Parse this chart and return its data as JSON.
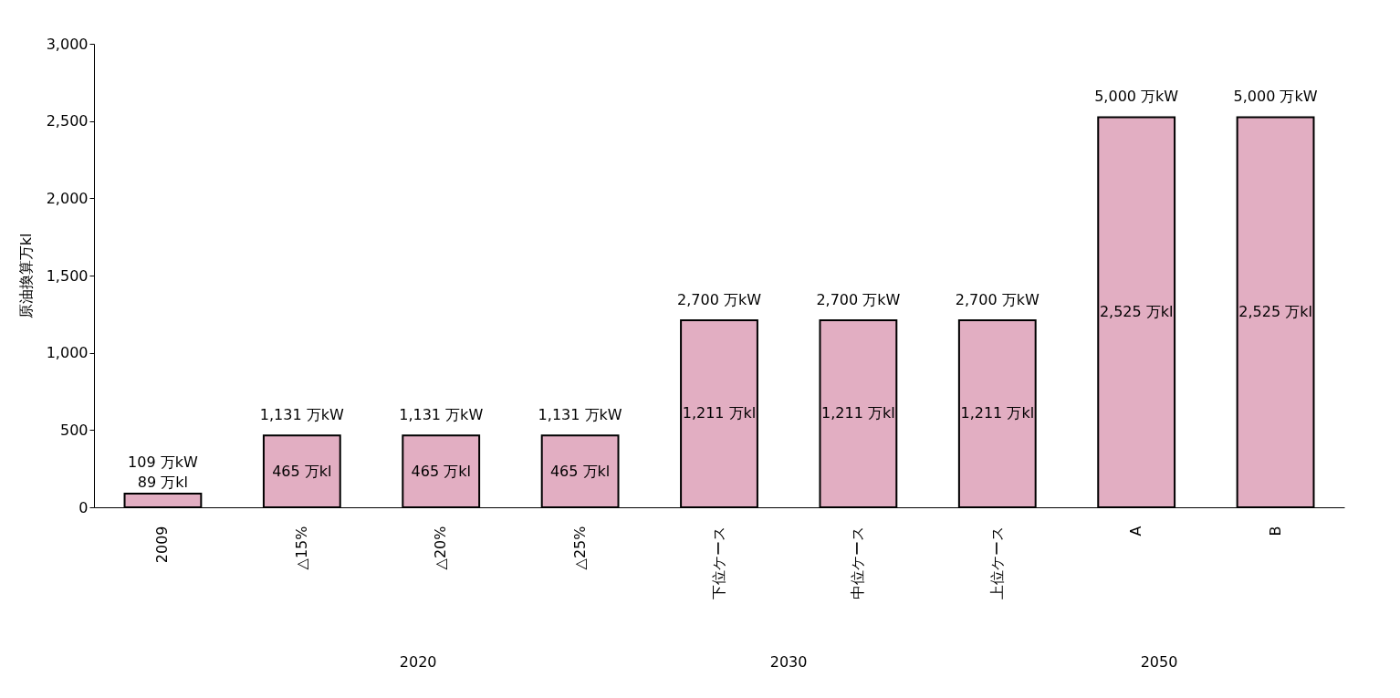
{
  "chart_data": {
    "type": "bar",
    "ylabel": "原油換算万kl",
    "categories": [
      "2009",
      "△15%",
      "△20%",
      "△25%",
      "下位ケース",
      "中位ケース",
      "上位ケース",
      "A",
      "B"
    ],
    "values": [
      89,
      465,
      465,
      465,
      1211,
      1211,
      1211,
      2525,
      2525
    ],
    "value_labels": [
      "89 万kl",
      "465 万kl",
      "465 万kl",
      "465 万kl",
      "1,211 万kl",
      "1,211 万kl",
      "1,211 万kl",
      "2,525 万kl",
      "2,525 万kl"
    ],
    "color": "#e2aec2",
    "ylim": [
      0,
      3000
    ],
    "yticks": [
      0,
      {
        "value": 500,
        "label": "500"
      },
      {
        "value": 1000,
        "label": "1,000"
      },
      {
        "value": 1500,
        "label": "1,500"
      },
      {
        "value": 2000,
        "label": "2,000"
      },
      {
        "value": 2500,
        "label": "2,500"
      },
      {
        "value": 3000,
        "label": "3,000"
      }
    ],
    "grid": false,
    "annotations": [
      "109 万kW",
      "1,131 万kW",
      "1,131 万kW",
      "1,131 万kW",
      "2,700 万kW",
      "2,700 万kW",
      "2,700 万kW",
      "5,000 万kW",
      "5,000 万kW",
      "2020",
      "2030",
      "2050"
    ]
  }
}
